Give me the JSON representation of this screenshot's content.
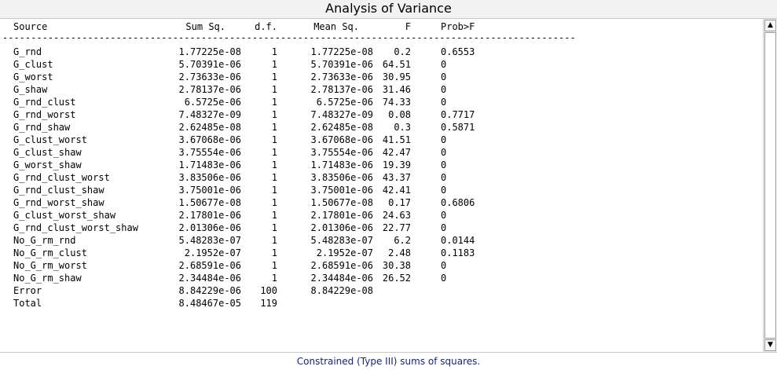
{
  "window": {
    "title": "Analysis of Variance"
  },
  "table": {
    "headers": {
      "source": "Source",
      "sum_sq": "Sum Sq.",
      "df": "d.f.",
      "mean_sq": "Mean Sq.",
      "f": "F",
      "prob": "Prob>F"
    },
    "divider": "-----------------------------------------------------------------------------------------------------",
    "rows": [
      {
        "source": "G_rnd",
        "sum_sq": "1.77225e-08",
        "df": "1",
        "mean_sq": "1.77225e-08",
        "f": "0.2",
        "prob": "0.6553"
      },
      {
        "source": "G_clust",
        "sum_sq": "5.70391e-06",
        "df": "1",
        "mean_sq": "5.70391e-06",
        "f": "64.51",
        "prob": "0"
      },
      {
        "source": "G_worst",
        "sum_sq": "2.73633e-06",
        "df": "1",
        "mean_sq": "2.73633e-06",
        "f": "30.95",
        "prob": "0"
      },
      {
        "source": "G_shaw",
        "sum_sq": "2.78137e-06",
        "df": "1",
        "mean_sq": "2.78137e-06",
        "f": "31.46",
        "prob": "0"
      },
      {
        "source": "G_rnd_clust",
        "sum_sq": "6.5725e-06",
        "df": "1",
        "mean_sq": "6.5725e-06",
        "f": "74.33",
        "prob": "0"
      },
      {
        "source": "G_rnd_worst",
        "sum_sq": "7.48327e-09",
        "df": "1",
        "mean_sq": "7.48327e-09",
        "f": "0.08",
        "prob": "0.7717"
      },
      {
        "source": "G_rnd_shaw",
        "sum_sq": "2.62485e-08",
        "df": "1",
        "mean_sq": "2.62485e-08",
        "f": "0.3",
        "prob": "0.5871"
      },
      {
        "source": "G_clust_worst",
        "sum_sq": "3.67068e-06",
        "df": "1",
        "mean_sq": "3.67068e-06",
        "f": "41.51",
        "prob": "0"
      },
      {
        "source": "G_clust_shaw",
        "sum_sq": "3.75554e-06",
        "df": "1",
        "mean_sq": "3.75554e-06",
        "f": "42.47",
        "prob": "0"
      },
      {
        "source": "G_worst_shaw",
        "sum_sq": "1.71483e-06",
        "df": "1",
        "mean_sq": "1.71483e-06",
        "f": "19.39",
        "prob": "0"
      },
      {
        "source": "G_rnd_clust_worst",
        "sum_sq": "3.83506e-06",
        "df": "1",
        "mean_sq": "3.83506e-06",
        "f": "43.37",
        "prob": "0"
      },
      {
        "source": "G_rnd_clust_shaw",
        "sum_sq": "3.75001e-06",
        "df": "1",
        "mean_sq": "3.75001e-06",
        "f": "42.41",
        "prob": "0"
      },
      {
        "source": "G_rnd_worst_shaw",
        "sum_sq": "1.50677e-08",
        "df": "1",
        "mean_sq": "1.50677e-08",
        "f": "0.17",
        "prob": "0.6806"
      },
      {
        "source": "G_clust_worst_shaw",
        "sum_sq": "2.17801e-06",
        "df": "1",
        "mean_sq": "2.17801e-06",
        "f": "24.63",
        "prob": "0"
      },
      {
        "source": "G_rnd_clust_worst_shaw",
        "sum_sq": "2.01306e-06",
        "df": "1",
        "mean_sq": "2.01306e-06",
        "f": "22.77",
        "prob": "0"
      },
      {
        "source": "No_G_rm_rnd",
        "sum_sq": "5.48283e-07",
        "df": "1",
        "mean_sq": "5.48283e-07",
        "f": "6.2",
        "prob": "0.0144"
      },
      {
        "source": "No_G_rm_clust",
        "sum_sq": "2.1952e-07",
        "df": "1",
        "mean_sq": "2.1952e-07",
        "f": "2.48",
        "prob": "0.1183"
      },
      {
        "source": "No_G_rm_worst",
        "sum_sq": "2.68591e-06",
        "df": "1",
        "mean_sq": "2.68591e-06",
        "f": "30.38",
        "prob": "0"
      },
      {
        "source": "No_G_rm_shaw",
        "sum_sq": "2.34484e-06",
        "df": "1",
        "mean_sq": "2.34484e-06",
        "f": "26.52",
        "prob": "0"
      },
      {
        "source": "Error",
        "sum_sq": "8.84229e-06",
        "df": "100",
        "mean_sq": "8.84229e-08",
        "f": "",
        "prob": ""
      },
      {
        "source": "Total",
        "sum_sq": "8.48467e-05",
        "df": "119",
        "mean_sq": "",
        "f": "",
        "prob": ""
      }
    ]
  },
  "footer": {
    "text": "Constrained (Type III) sums of squares."
  },
  "icons": {
    "scroll_up": "up-arrow-icon",
    "scroll_down": "down-arrow-icon"
  },
  "colors": {
    "footer_text": "#1a237e",
    "title_bar": "#f2f2f2"
  }
}
